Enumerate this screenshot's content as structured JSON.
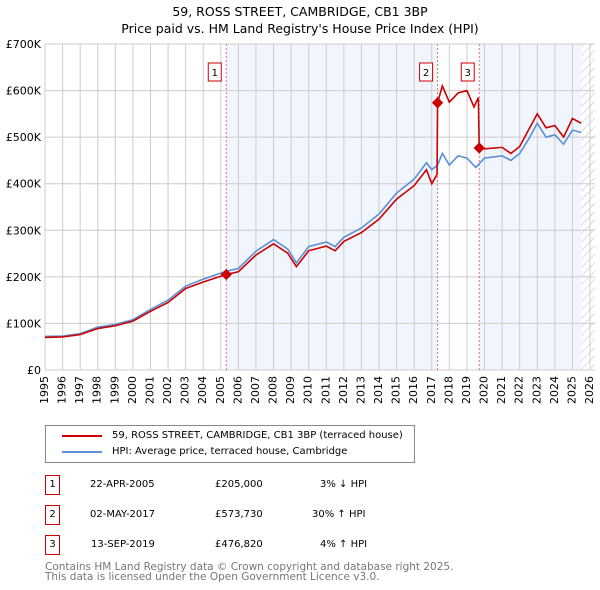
{
  "chart_data": {
    "type": "line",
    "title": "59, ROSS STREET, CAMBRIDGE, CB1 3BP",
    "subtitle": "Price paid vs. HM Land Registry's House Price Index (HPI)",
    "xlim": [
      1995,
      2026
    ],
    "ylim": [
      0,
      700000
    ],
    "x_ticks": [
      "1995",
      "1996",
      "1997",
      "1998",
      "1999",
      "2000",
      "2001",
      "2002",
      "2003",
      "2004",
      "2005",
      "2006",
      "2007",
      "2008",
      "2009",
      "2010",
      "2011",
      "2012",
      "2013",
      "2014",
      "2015",
      "2016",
      "2017",
      "2018",
      "2019",
      "2020",
      "2021",
      "2022",
      "2023",
      "2024",
      "2025",
      "2026"
    ],
    "y_ticks": [
      {
        "v": 0,
        "label": "£0"
      },
      {
        "v": 100000,
        "label": "£100K"
      },
      {
        "v": 200000,
        "label": "£200K"
      },
      {
        "v": 300000,
        "label": "£300K"
      },
      {
        "v": 400000,
        "label": "£400K"
      },
      {
        "v": 500000,
        "label": "£500K"
      },
      {
        "v": 600000,
        "label": "£600K"
      },
      {
        "v": 700000,
        "label": "£700K"
      }
    ],
    "grid": true,
    "series": [
      {
        "name": "59, ROSS STREET, CAMBRIDGE, CB1 3BP (terraced house)",
        "color": "#cc0000",
        "x": [
          1995,
          1996,
          1997,
          1998,
          1999,
          2000,
          2001,
          2002,
          2003,
          2004,
          2005.3,
          2006,
          2007,
          2008,
          2008.8,
          2009.3,
          2010,
          2011,
          2011.5,
          2012,
          2013,
          2014,
          2015,
          2016,
          2016.7,
          2017,
          2017.3,
          2017.33,
          2017.6,
          2018,
          2018.5,
          2019,
          2019.4,
          2019.65,
          2019.7,
          2020,
          2021,
          2021.5,
          2022,
          2022.5,
          2023,
          2023.5,
          2024,
          2024.5,
          2025,
          2025.5
        ],
        "y": [
          70000,
          71000,
          76000,
          89000,
          95000,
          105000,
          126000,
          145000,
          175000,
          189000,
          205000,
          211000,
          247000,
          271000,
          251000,
          222000,
          256000,
          266000,
          256000,
          276000,
          295000,
          324000,
          367000,
          396000,
          430000,
          400000,
          420000,
          573730,
          610000,
          575000,
          595000,
          600000,
          565000,
          585000,
          476820,
          475000,
          478000,
          465000,
          480000,
          515000,
          550000,
          520000,
          525000,
          500000,
          540000,
          530000
        ]
      },
      {
        "name": "HPI: Average price, terraced house, Cambridge",
        "color": "#5b8fd6",
        "x": [
          1995,
          1996,
          1997,
          1998,
          1999,
          2000,
          2001,
          2002,
          2003,
          2004,
          2005.3,
          2006,
          2007,
          2008,
          2008.8,
          2009.3,
          2010,
          2011,
          2011.5,
          2012,
          2013,
          2014,
          2015,
          2016,
          2016.7,
          2017,
          2017.33,
          2017.6,
          2018,
          2018.5,
          2019,
          2019.5,
          2020,
          2021,
          2021.5,
          2022,
          2022.5,
          2023,
          2023.5,
          2024,
          2024.5,
          2025,
          2025.5
        ],
        "y": [
          72000,
          73000,
          78000,
          92000,
          98000,
          108000,
          130000,
          150000,
          180000,
          195000,
          212000,
          218000,
          255000,
          280000,
          260000,
          230000,
          265000,
          275000,
          265000,
          285000,
          305000,
          335000,
          380000,
          410000,
          445000,
          430000,
          440000,
          465000,
          440000,
          460000,
          455000,
          435000,
          455000,
          460000,
          450000,
          465000,
          495000,
          530000,
          500000,
          505000,
          485000,
          515000,
          510000
        ]
      }
    ],
    "sales": [
      {
        "id": "1",
        "x": 2005.31,
        "y": 205000,
        "date": "22-APR-2005",
        "price": "£205,000",
        "hpi": "3% ↓ HPI"
      },
      {
        "id": "2",
        "x": 2017.33,
        "y": 573730,
        "date": "02-MAY-2017",
        "price": "£573,730",
        "hpi": "30% ↑ HPI"
      },
      {
        "id": "3",
        "x": 2019.7,
        "y": 476820,
        "date": "13-SEP-2019",
        "price": "£476,820",
        "hpi": "4% ↑ HPI"
      }
    ],
    "shaded_ranges": [
      [
        2005.31,
        2017.33
      ],
      [
        2019.7,
        2025.5
      ]
    ],
    "forecast_hatch_from": 2025.5
  },
  "footer": {
    "line1": "Contains HM Land Registry data © Crown copyright and database right 2025.",
    "line2": "This data is licensed under the Open Government Licence v3.0."
  }
}
